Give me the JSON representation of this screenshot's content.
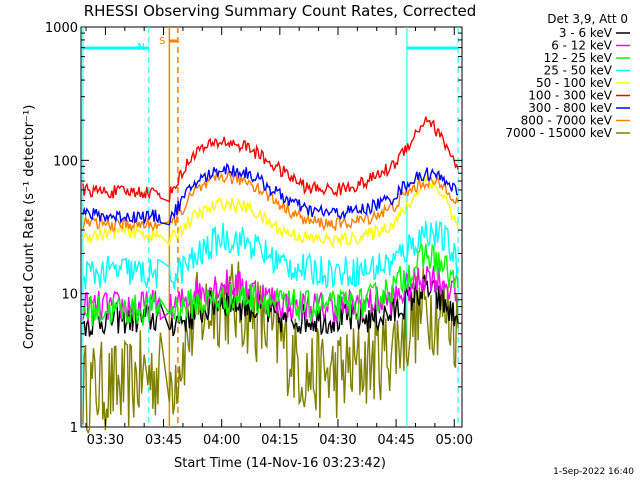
{
  "chart_data": {
    "type": "line",
    "title": "RHESSI Observing Summary Count Rates, Corrected",
    "xlabel": "Start Time (14-Nov-16 03:23:42)",
    "ylabel": "Corrected Count Rate (s⁻¹ detector⁻¹)",
    "y_scale": "log",
    "ylim": [
      1,
      1000
    ],
    "xlim_minutes_after_0330": [
      -6.3,
      92
    ],
    "y_ticks": [
      {
        "value": 1,
        "label": "1"
      },
      {
        "value": 10,
        "label": "10"
      },
      {
        "value": 100,
        "label": "100"
      },
      {
        "value": 1000,
        "label": "1000"
      }
    ],
    "x_ticks": [
      {
        "value": 0,
        "label": "03:30"
      },
      {
        "value": 15,
        "label": "03:45"
      },
      {
        "value": 30,
        "label": "04:00"
      },
      {
        "value": 45,
        "label": "04:15"
      },
      {
        "value": 60,
        "label": "04:30"
      },
      {
        "value": 75,
        "label": "04:45"
      },
      {
        "value": 90,
        "label": "05:00"
      }
    ],
    "legend_header": "Det 3,9, Att 0",
    "legend_placement": "top-right outside plot",
    "series": [
      {
        "name": "3 - 6 keV",
        "color": "#000000",
        "x": [
          -5.8,
          0,
          5,
          10,
          14.5,
          16.5,
          23,
          30,
          37,
          45,
          52,
          60,
          67,
          74,
          78,
          83,
          88,
          91
        ],
        "y": [
          6,
          6.5,
          6.5,
          6.5,
          6.5,
          6,
          7,
          9,
          8,
          6.5,
          6.5,
          6.5,
          6.5,
          7,
          9,
          11,
          8,
          6
        ]
      },
      {
        "name": "6 - 12 keV",
        "color": "#ff00ff",
        "x": [
          -5.8,
          0,
          5,
          10,
          14.5,
          16.5,
          23,
          30,
          37,
          45,
          52,
          60,
          67,
          74,
          78,
          83,
          88,
          91
        ],
        "y": [
          8,
          8,
          8,
          8,
          8.5,
          7.5,
          10,
          12,
          11,
          8.5,
          8,
          8,
          8.5,
          9,
          11,
          14,
          12,
          9
        ]
      },
      {
        "name": "12 - 25 keV",
        "color": "#00ff00",
        "x": [
          -5.8,
          0,
          5,
          10,
          14.5,
          16.5,
          23,
          30,
          37,
          45,
          52,
          60,
          67,
          74,
          78,
          83,
          88,
          91
        ],
        "y": [
          7.5,
          7.5,
          7.5,
          7.5,
          8,
          7.5,
          8.5,
          9,
          9.5,
          8.5,
          8,
          8,
          8.5,
          11,
          14,
          20,
          15,
          11
        ]
      },
      {
        "name": "25 - 50 keV",
        "color": "#00ffff",
        "x": [
          -5.8,
          0,
          5,
          10,
          14.5,
          16.5,
          23,
          30,
          37,
          45,
          52,
          60,
          67,
          74,
          78,
          83,
          88,
          91
        ],
        "y": [
          14,
          14.5,
          15,
          14,
          14,
          13,
          18,
          27,
          24,
          17,
          15,
          14.5,
          15,
          17,
          22,
          30,
          25,
          16
        ]
      },
      {
        "name": "50 - 100 keV",
        "color": "#ffff00",
        "x": [
          -5.8,
          0,
          5,
          10,
          14.5,
          16.5,
          23,
          30,
          37,
          45,
          52,
          60,
          67,
          74,
          78,
          83,
          88,
          91
        ],
        "y": [
          27,
          28,
          30,
          28,
          27,
          25,
          38,
          48,
          44,
          30,
          26,
          25,
          27,
          33,
          45,
          75,
          50,
          30
        ]
      },
      {
        "name": "100 - 300 keV",
        "color": "#ff0000",
        "x": [
          -5.8,
          0,
          5,
          10,
          14.5,
          16.5,
          23,
          30,
          37,
          45,
          52,
          60,
          67,
          74,
          78,
          83,
          88,
          91
        ],
        "y": [
          60,
          58,
          58,
          58,
          57,
          55,
          115,
          140,
          125,
          85,
          62,
          60,
          68,
          90,
          130,
          210,
          130,
          85
        ]
      },
      {
        "name": "300 - 800 keV",
        "color": "#0000ff",
        "x": [
          -5.8,
          0,
          5,
          10,
          14.5,
          16.5,
          23,
          30,
          37,
          45,
          52,
          60,
          67,
          74,
          78,
          83,
          88,
          91
        ],
        "y": [
          40,
          38,
          38,
          38,
          38,
          36,
          68,
          87,
          80,
          55,
          42,
          40,
          43,
          52,
          68,
          80,
          72,
          55
        ]
      },
      {
        "name": "800 - 7000 keV",
        "color": "#ff8000",
        "x": [
          -5.8,
          0,
          5,
          10,
          14.5,
          16.5,
          23,
          30,
          37,
          45,
          52,
          60,
          67,
          74,
          78,
          83,
          88,
          91
        ],
        "y": [
          34,
          33,
          33,
          33,
          33,
          31,
          58,
          76,
          70,
          47,
          35,
          33,
          36,
          44,
          58,
          70,
          63,
          48
        ]
      },
      {
        "name": "7000 - 15000 keV",
        "color": "#808000",
        "x": [
          -5.8,
          0,
          5,
          10,
          14.5,
          16.5,
          23,
          30,
          37,
          45,
          52,
          60,
          67,
          74,
          78,
          83,
          88,
          91
        ],
        "y": [
          2,
          2,
          2,
          2.5,
          2.5,
          2,
          6.5,
          9,
          7.5,
          4.5,
          2.5,
          2.5,
          3,
          4,
          5.5,
          8,
          7,
          5.5
        ]
      }
    ],
    "annotations": [
      {
        "label": "S",
        "color": "#ff8000",
        "x_start": 16.5,
        "x_end": 18.7
      },
      {
        "label": "N",
        "color": "#00ffff",
        "x_start": -5.8,
        "x_end": 11.2
      },
      {
        "label": "",
        "color": "#00ffff",
        "x_start": 77.8,
        "x_end": 91
      }
    ],
    "footer_date": "1-Sep-2022 16:40"
  }
}
